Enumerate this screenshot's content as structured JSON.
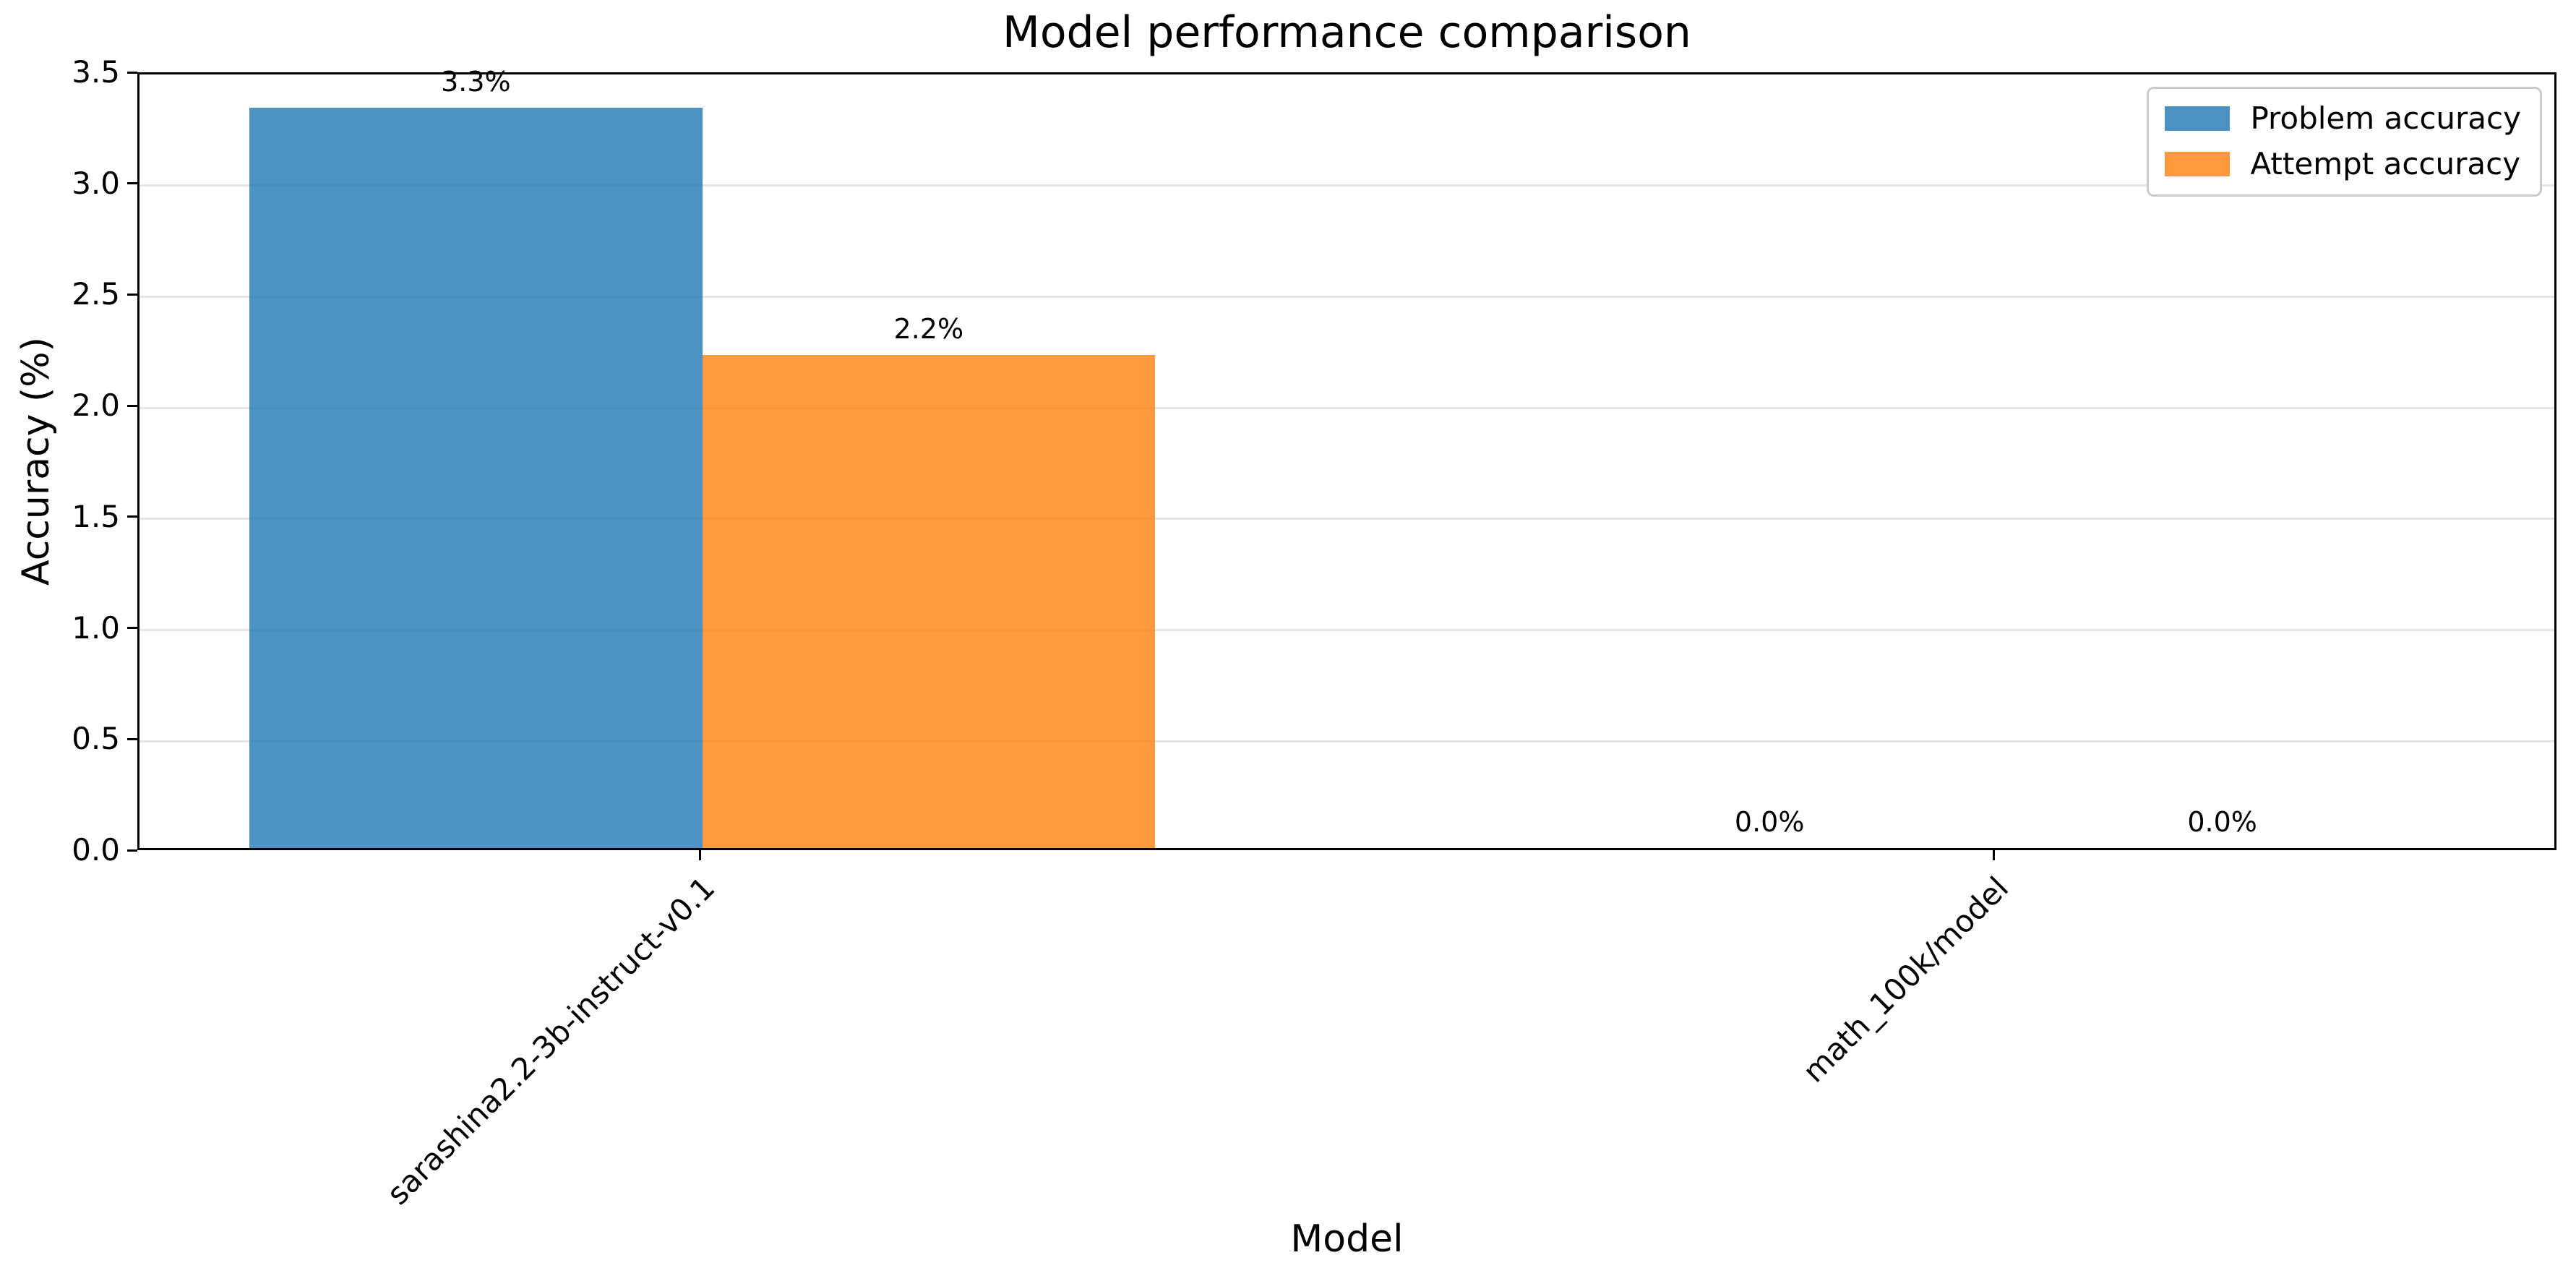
{
  "chart_data": {
    "type": "bar",
    "title": "Model performance comparison",
    "xlabel": "Model",
    "ylabel": "Accuracy (%)",
    "categories": [
      "sarashina2.2-3b-instruct-v0.1",
      "math_100k/model"
    ],
    "series": [
      {
        "name": "Problem accuracy",
        "color": "#1f77b4",
        "values": [
          3.33,
          0.0
        ],
        "value_labels": [
          "3.3%",
          "0.0%"
        ]
      },
      {
        "name": "Attempt accuracy",
        "color": "#ff7f0e",
        "values": [
          2.22,
          0.0
        ],
        "value_labels": [
          "2.2%",
          "0.0%"
        ]
      }
    ],
    "ylim": [
      0,
      3.5
    ],
    "yticks": [
      "0.0",
      "0.5",
      "1.0",
      "1.5",
      "2.0",
      "2.5",
      "3.0",
      "3.5"
    ],
    "xlim": [
      -0.435,
      1.435
    ],
    "bar_width": 0.35,
    "grid": "horizontal-light-gray",
    "legend_position": "upper right"
  },
  "legend": {
    "entries": [
      {
        "label": "Problem accuracy",
        "color": "#1f77b4"
      },
      {
        "label": "Attempt accuracy",
        "color": "#ff7f0e"
      }
    ]
  },
  "colors": {
    "problem_series": "#1f77b4",
    "attempt_series": "#ff7f0e",
    "bar_alpha": 0.8,
    "gridline": "#e6e6e6",
    "axis": "#000000",
    "legend_border": "#cccccc",
    "background": "#ffffff"
  }
}
